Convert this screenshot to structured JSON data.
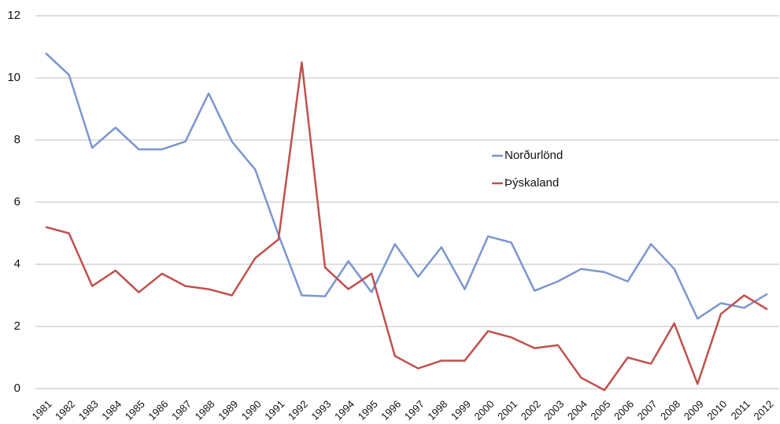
{
  "chart_data": {
    "type": "line",
    "categories": [
      "1981",
      "1982",
      "1983",
      "1984",
      "1985",
      "1986",
      "1987",
      "1988",
      "1989",
      "1990",
      "1991",
      "1992",
      "1993",
      "1994",
      "1995",
      "1996",
      "1997",
      "1998",
      "1999",
      "2000",
      "2001",
      "2002",
      "2003",
      "2004",
      "2005",
      "2006",
      "2007",
      "2008",
      "2009",
      "2010",
      "2011",
      "2012"
    ],
    "series": [
      {
        "name": "Norðurlönd",
        "color": "#7b96cf",
        "values": [
          10.8,
          10.1,
          7.75,
          8.4,
          7.7,
          7.7,
          7.95,
          9.5,
          7.95,
          7.05,
          4.95,
          3.0,
          2.97,
          4.1,
          3.1,
          4.65,
          3.6,
          4.55,
          3.2,
          4.9,
          4.7,
          3.15,
          3.45,
          3.85,
          3.75,
          3.45,
          4.65,
          3.85,
          2.25,
          2.75,
          2.6,
          3.05
        ]
      },
      {
        "name": "Þýskaland",
        "color": "#c0504d",
        "values": [
          5.2,
          5.0,
          3.3,
          3.8,
          3.1,
          3.7,
          3.3,
          3.2,
          3.0,
          4.2,
          4.8,
          10.5,
          3.9,
          3.2,
          3.7,
          1.05,
          0.65,
          0.9,
          0.9,
          1.85,
          1.65,
          1.3,
          1.4,
          0.35,
          -0.05,
          1.0,
          0.8,
          2.1,
          0.15,
          2.4,
          3.0,
          2.55
        ]
      }
    ],
    "ylim": [
      0,
      12
    ],
    "yticks": [
      0,
      2,
      4,
      6,
      8,
      10,
      12
    ],
    "grid": true,
    "legend": "right"
  }
}
